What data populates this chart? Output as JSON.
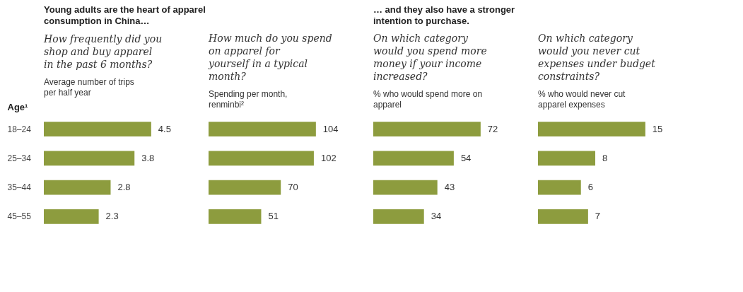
{
  "chart_data": [
    {
      "type": "bar",
      "orientation": "horizontal",
      "annotations": [
        "Young adults are the heart of apparel consumption in China…"
      ],
      "title": "How frequently did you shop and buy apparel in the past 6 months?",
      "subtitle": "Average number of trips per half year",
      "ylabel": "Age¹",
      "categories": [
        "18–24",
        "25–34",
        "35–44",
        "45–55"
      ],
      "values": [
        4.5,
        3.8,
        2.8,
        2.3
      ],
      "color": "#8d9c3e",
      "data_labels": true,
      "tick_labels": "y"
    },
    {
      "type": "bar",
      "orientation": "horizontal",
      "title": "How much do you spend on apparel for yourself in a typical month?",
      "subtitle": "Spending per month, renminbi²",
      "categories": [
        null,
        null,
        null,
        null
      ],
      "values": [
        104,
        102,
        70,
        51
      ],
      "color": "#8d9c3e",
      "data_labels": true
    },
    {
      "type": "bar",
      "orientation": "horizontal",
      "annotations": [
        "… and they also have a stronger intention to purchase."
      ],
      "title": "On which category would you spend more money if your income increased?",
      "subtitle": "% who would spend more on apparel",
      "categories": [
        null,
        null,
        null,
        null
      ],
      "values": [
        72,
        54,
        43,
        34
      ],
      "color": "#8d9c3e",
      "data_labels": true
    },
    {
      "type": "bar",
      "orientation": "horizontal",
      "title": "On which category would you never cut expenses under budget constraints?",
      "subtitle": "% who would never cut apparel expenses",
      "categories": [
        null,
        null,
        null,
        null
      ],
      "values": [
        15,
        8,
        6,
        7
      ],
      "color": "#8d9c3e",
      "data_labels": true
    }
  ]
}
